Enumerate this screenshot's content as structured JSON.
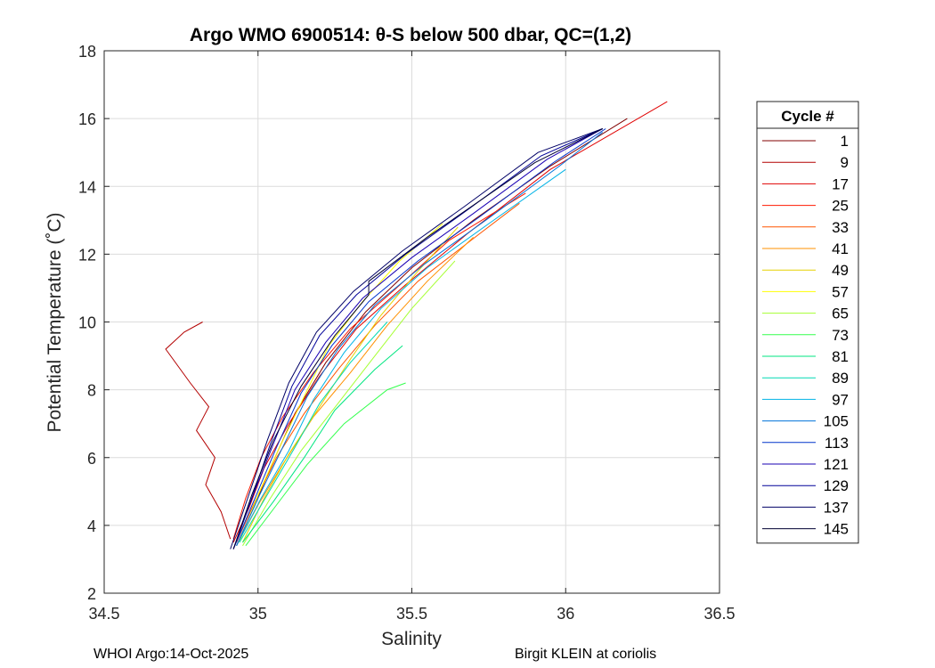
{
  "chart_data": {
    "type": "line",
    "title": "Argo WMO 6900514: θ-S below 500 dbar,  QC=(1,2)",
    "xlabel": "Salinity",
    "ylabel": "Potential Temperature (˚C)",
    "xlim": [
      34.5,
      36.5
    ],
    "ylim": [
      2,
      18
    ],
    "xticks": [
      34.5,
      35,
      35.5,
      36,
      36.5
    ],
    "xtick_labels": [
      "34.5",
      "35",
      "35.5",
      "36",
      "36.5"
    ],
    "yticks": [
      2,
      4,
      6,
      8,
      10,
      12,
      14,
      16,
      18
    ],
    "ytick_labels": [
      "2",
      "4",
      "6",
      "8",
      "10",
      "12",
      "14",
      "16",
      "18"
    ],
    "grid": true,
    "legend_title": "Cycle #",
    "legend_position": "outside-right",
    "series": [
      {
        "name": "1",
        "color": "#800000",
        "x": [
          34.93,
          34.99,
          35.05,
          35.12,
          35.22,
          35.35,
          35.5,
          35.7,
          35.95,
          36.2
        ],
        "y": [
          3.4,
          4.6,
          5.9,
          7.3,
          8.8,
          10.3,
          11.6,
          13.0,
          14.6,
          16.0
        ]
      },
      {
        "name": "9",
        "color": "#b30000",
        "x": [
          34.82,
          34.76,
          34.7,
          34.74,
          34.78,
          34.84,
          34.8,
          34.86,
          34.83,
          34.88,
          34.91
        ],
        "y": [
          10.0,
          9.7,
          9.2,
          8.7,
          8.2,
          7.5,
          6.8,
          6.0,
          5.2,
          4.4,
          3.6
        ]
      },
      {
        "name": "17",
        "color": "#e00000",
        "x": [
          34.92,
          34.97,
          35.02,
          35.1,
          35.2,
          35.32,
          35.48,
          35.68,
          35.95,
          36.33
        ],
        "y": [
          3.5,
          4.5,
          5.7,
          7.0,
          8.4,
          9.8,
          11.1,
          12.6,
          14.5,
          16.5
        ]
      },
      {
        "name": "25",
        "color": "#ff1a00",
        "x": [
          34.92,
          34.96,
          35.01,
          35.08,
          35.18,
          35.3,
          35.45,
          35.62,
          35.87
        ],
        "y": [
          3.6,
          4.8,
          6.0,
          7.2,
          8.5,
          9.8,
          11.0,
          12.4,
          13.8
        ]
      },
      {
        "name": "33",
        "color": "#ff5500",
        "x": [
          34.93,
          34.99,
          35.06,
          35.15,
          35.26,
          35.38,
          35.52,
          35.72,
          35.85
        ],
        "y": [
          3.5,
          4.7,
          6.0,
          7.3,
          8.6,
          9.9,
          11.2,
          12.6,
          13.5
        ]
      },
      {
        "name": "41",
        "color": "#ff9000",
        "x": [
          34.93,
          35.0,
          35.08,
          35.18,
          35.3,
          35.42,
          35.55,
          35.7
        ],
        "y": [
          3.4,
          4.6,
          5.8,
          7.2,
          8.5,
          9.9,
          11.2,
          12.5
        ]
      },
      {
        "name": "49",
        "color": "#e6d000",
        "x": [
          34.95,
          35.02,
          35.1,
          35.2,
          35.3,
          35.4,
          35.52,
          35.65
        ],
        "y": [
          3.5,
          4.8,
          6.1,
          7.5,
          8.9,
          10.2,
          11.5,
          12.8
        ]
      },
      {
        "name": "57",
        "color": "#ffff00",
        "x": [
          34.94,
          35.0,
          35.07,
          35.15,
          35.23,
          35.34,
          35.46,
          35.6
        ],
        "y": [
          3.5,
          4.9,
          6.3,
          7.8,
          9.3,
          10.6,
          11.8,
          12.9
        ]
      },
      {
        "name": "65",
        "color": "#a6ff33",
        "x": [
          34.95,
          35.04,
          35.14,
          35.26,
          35.38,
          35.5,
          35.64
        ],
        "y": [
          3.4,
          4.8,
          6.2,
          7.6,
          9.0,
          10.4,
          11.8
        ]
      },
      {
        "name": "73",
        "color": "#33ff4d",
        "x": [
          34.96,
          35.06,
          35.16,
          35.28,
          35.42,
          35.48
        ],
        "y": [
          3.4,
          4.6,
          5.8,
          7.0,
          8.0,
          8.2
        ]
      },
      {
        "name": "81",
        "color": "#00e680",
        "x": [
          34.95,
          35.05,
          35.15,
          35.25,
          35.38,
          35.47
        ],
        "y": [
          3.5,
          4.7,
          6.0,
          7.4,
          8.6,
          9.3
        ]
      },
      {
        "name": "89",
        "color": "#00d9b3",
        "x": [
          34.94,
          35.03,
          35.12,
          35.2,
          35.3,
          35.42
        ],
        "y": [
          3.5,
          4.9,
          6.3,
          7.6,
          8.8,
          10.0
        ]
      },
      {
        "name": "97",
        "color": "#00b3e6",
        "x": [
          34.93,
          35.01,
          35.1,
          35.18,
          35.28,
          35.4,
          35.55,
          35.75,
          36.0
        ],
        "y": [
          3.4,
          4.8,
          6.2,
          7.7,
          9.1,
          10.4,
          11.6,
          12.9,
          14.5
        ]
      },
      {
        "name": "105",
        "color": "#0073d9",
        "x": [
          34.93,
          35.0,
          35.08,
          35.16,
          35.26,
          35.38,
          35.54,
          35.74,
          35.98,
          36.12
        ],
        "y": [
          3.4,
          4.8,
          6.3,
          7.8,
          9.2,
          10.5,
          11.7,
          13.0,
          14.6,
          15.6
        ]
      },
      {
        "name": "113",
        "color": "#0033cc",
        "x": [
          34.92,
          34.99,
          35.06,
          35.14,
          35.24,
          35.36,
          35.52,
          35.72,
          35.96,
          36.13
        ],
        "y": [
          3.3,
          4.8,
          6.3,
          7.9,
          9.3,
          10.6,
          11.8,
          13.1,
          14.7,
          15.7
        ]
      },
      {
        "name": "121",
        "color": "#1a00b3",
        "x": [
          34.92,
          34.98,
          35.05,
          35.12,
          35.22,
          35.34,
          35.5,
          35.7,
          35.94,
          36.12
        ],
        "y": [
          3.3,
          4.8,
          6.4,
          8.0,
          9.4,
          10.7,
          11.9,
          13.2,
          14.8,
          15.7
        ]
      },
      {
        "name": "129",
        "color": "#000099",
        "x": [
          34.92,
          34.98,
          35.04,
          35.11,
          35.2,
          35.32,
          35.48,
          35.68,
          35.92,
          36.12
        ],
        "y": [
          3.3,
          4.8,
          6.4,
          8.1,
          9.6,
          10.8,
          12.0,
          13.3,
          14.9,
          15.7
        ]
      },
      {
        "name": "137",
        "color": "#000066",
        "x": [
          34.91,
          34.97,
          35.03,
          35.1,
          35.19,
          35.31,
          35.47,
          35.67,
          35.91,
          36.12
        ],
        "y": [
          3.3,
          4.9,
          6.5,
          8.2,
          9.7,
          10.9,
          12.1,
          13.4,
          15.0,
          15.7
        ]
      },
      {
        "name": "145",
        "color": "#000033",
        "x": [
          34.92,
          34.98,
          35.05,
          35.14,
          35.25,
          35.36,
          35.36,
          35.55,
          35.9,
          36.12
        ],
        "y": [
          3.3,
          4.9,
          6.5,
          8.1,
          9.6,
          10.8,
          11.2,
          12.5,
          14.7,
          15.7
        ]
      }
    ]
  },
  "footer": {
    "left": "WHOI Argo:14-Oct-2025",
    "right": "Birgit KLEIN at coriolis"
  }
}
